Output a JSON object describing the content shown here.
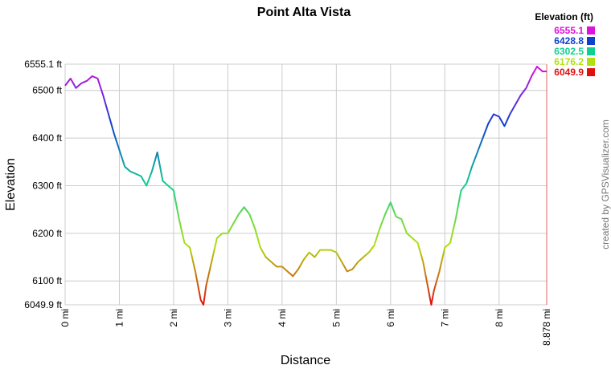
{
  "chart_data": {
    "type": "line",
    "title": "Point Alta Vista",
    "xlabel": "Distance",
    "ylabel": "Elevation",
    "credit": "created by GPSVisualizer.com",
    "x": [
      0,
      0.1,
      0.2,
      0.3,
      0.4,
      0.5,
      0.6,
      0.7,
      0.8,
      0.9,
      1.0,
      1.1,
      1.2,
      1.3,
      1.4,
      1.5,
      1.6,
      1.7,
      1.8,
      1.9,
      2.0,
      2.1,
      2.2,
      2.3,
      2.4,
      2.5,
      2.55,
      2.6,
      2.7,
      2.8,
      2.9,
      3.0,
      3.1,
      3.2,
      3.3,
      3.4,
      3.5,
      3.6,
      3.7,
      3.8,
      3.9,
      4.0,
      4.1,
      4.2,
      4.3,
      4.4,
      4.5,
      4.6,
      4.7,
      4.8,
      4.9,
      5.0,
      5.1,
      5.2,
      5.3,
      5.4,
      5.5,
      5.6,
      5.7,
      5.8,
      5.9,
      6.0,
      6.1,
      6.2,
      6.3,
      6.4,
      6.5,
      6.6,
      6.7,
      6.75,
      6.8,
      6.9,
      7.0,
      7.1,
      7.2,
      7.3,
      7.4,
      7.5,
      7.6,
      7.7,
      7.8,
      7.9,
      8.0,
      8.1,
      8.2,
      8.3,
      8.4,
      8.5,
      8.6,
      8.7,
      8.8,
      8.878
    ],
    "values": [
      6510,
      6525,
      6505,
      6515,
      6520,
      6530,
      6525,
      6490,
      6450,
      6410,
      6375,
      6340,
      6330,
      6325,
      6320,
      6300,
      6330,
      6370,
      6310,
      6300,
      6290,
      6230,
      6180,
      6170,
      6120,
      6060,
      6050,
      6090,
      6140,
      6190,
      6200,
      6200,
      6220,
      6240,
      6255,
      6240,
      6210,
      6170,
      6150,
      6140,
      6130,
      6130,
      6120,
      6110,
      6125,
      6145,
      6160,
      6150,
      6165,
      6165,
      6165,
      6160,
      6140,
      6120,
      6125,
      6140,
      6150,
      6160,
      6175,
      6210,
      6240,
      6265,
      6235,
      6230,
      6200,
      6190,
      6180,
      6140,
      6080,
      6050,
      6080,
      6120,
      6170,
      6180,
      6230,
      6290,
      6305,
      6340,
      6370,
      6400,
      6430,
      6450,
      6445,
      6425,
      6450,
      6470,
      6490,
      6505,
      6530,
      6550,
      6540,
      6540
    ],
    "xlim": [
      0,
      8.878
    ],
    "ylim": [
      6049.9,
      6555.1
    ],
    "xticks": [
      {
        "value": 0,
        "label": "0 mi"
      },
      {
        "value": 1,
        "label": "1 mi"
      },
      {
        "value": 2,
        "label": "2 mi"
      },
      {
        "value": 3,
        "label": "3 mi"
      },
      {
        "value": 4,
        "label": "4 mi"
      },
      {
        "value": 5,
        "label": "5 mi"
      },
      {
        "value": 6,
        "label": "6 mi"
      },
      {
        "value": 7,
        "label": "7 mi"
      },
      {
        "value": 8,
        "label": "8 mi"
      },
      {
        "value": 8.878,
        "label": "8.878 mi"
      }
    ],
    "yticks": [
      {
        "value": 6049.9,
        "label": "6049.9 ft"
      },
      {
        "value": 6100,
        "label": "6100 ft"
      },
      {
        "value": 6200,
        "label": "6200 ft"
      },
      {
        "value": 6300,
        "label": "6300 ft"
      },
      {
        "value": 6400,
        "label": "6400 ft"
      },
      {
        "value": 6500,
        "label": "6500 ft"
      },
      {
        "value": 6555.1,
        "label": "6555.1 ft"
      }
    ],
    "grid": true,
    "legend": {
      "title": "Elevation (ft)",
      "items": [
        {
          "value": 6555.1,
          "color": "#e010e0"
        },
        {
          "value": 6428.8,
          "color": "#1040d0"
        },
        {
          "value": 6302.5,
          "color": "#10d090"
        },
        {
          "value": 6176.2,
          "color": "#b0e010"
        },
        {
          "value": 6049.9,
          "color": "#e01010"
        }
      ]
    }
  }
}
